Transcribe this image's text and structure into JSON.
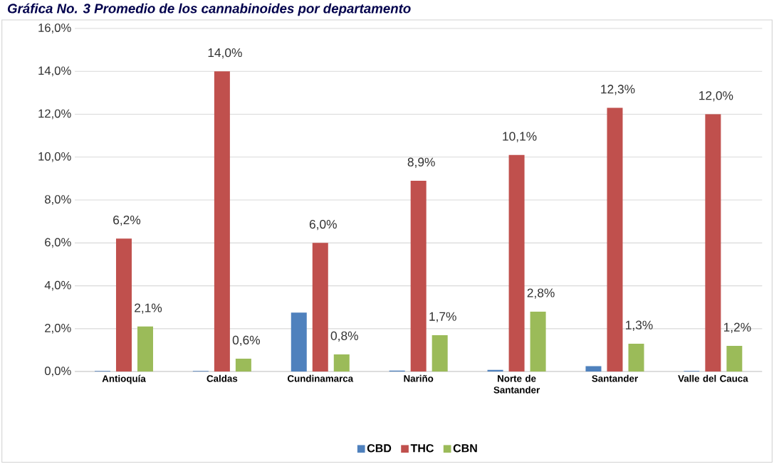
{
  "chart_data": {
    "type": "bar",
    "title": "Gráfica No. 3 Promedio de los cannabinoides por departamento",
    "categories": [
      "Antioquía",
      "Caldas",
      "Cundinamarca",
      "Nariño",
      "Norte de Santander",
      "Santander",
      "Valle del Cauca"
    ],
    "series": [
      {
        "name": "CBD",
        "color": "#4f81bd",
        "values": [
          0.03,
          0.03,
          2.75,
          0.05,
          0.08,
          0.25,
          0.03
        ]
      },
      {
        "name": "THC",
        "color": "#c0504d",
        "values": [
          6.2,
          14.0,
          6.0,
          8.9,
          10.1,
          12.3,
          12.0
        ],
        "value_labels": [
          "6,2%",
          "14,0%",
          "6,0%",
          "8,9%",
          "10,1%",
          "12,3%",
          "12,0%"
        ]
      },
      {
        "name": "CBN",
        "color": "#9bbb59",
        "values": [
          2.1,
          0.6,
          0.8,
          1.7,
          2.8,
          1.3,
          1.2
        ],
        "value_labels": [
          "2,1%",
          "0,6%",
          "0,8%",
          "1,7%",
          "2,8%",
          "1,3%",
          "1,2%"
        ]
      }
    ],
    "ylim": [
      0,
      16
    ],
    "yticks": [
      {
        "value": 0,
        "label": "0,0%"
      },
      {
        "value": 2,
        "label": "2,0%"
      },
      {
        "value": 4,
        "label": "4,0%"
      },
      {
        "value": 6,
        "label": "6,0%"
      },
      {
        "value": 8,
        "label": "8,0%"
      },
      {
        "value": 10,
        "label": "10,0%"
      },
      {
        "value": 12,
        "label": "12,0%"
      },
      {
        "value": 14,
        "label": "14,0%"
      },
      {
        "value": 16,
        "label": "16,0%"
      }
    ],
    "grid": "y",
    "legend": "bottom"
  }
}
